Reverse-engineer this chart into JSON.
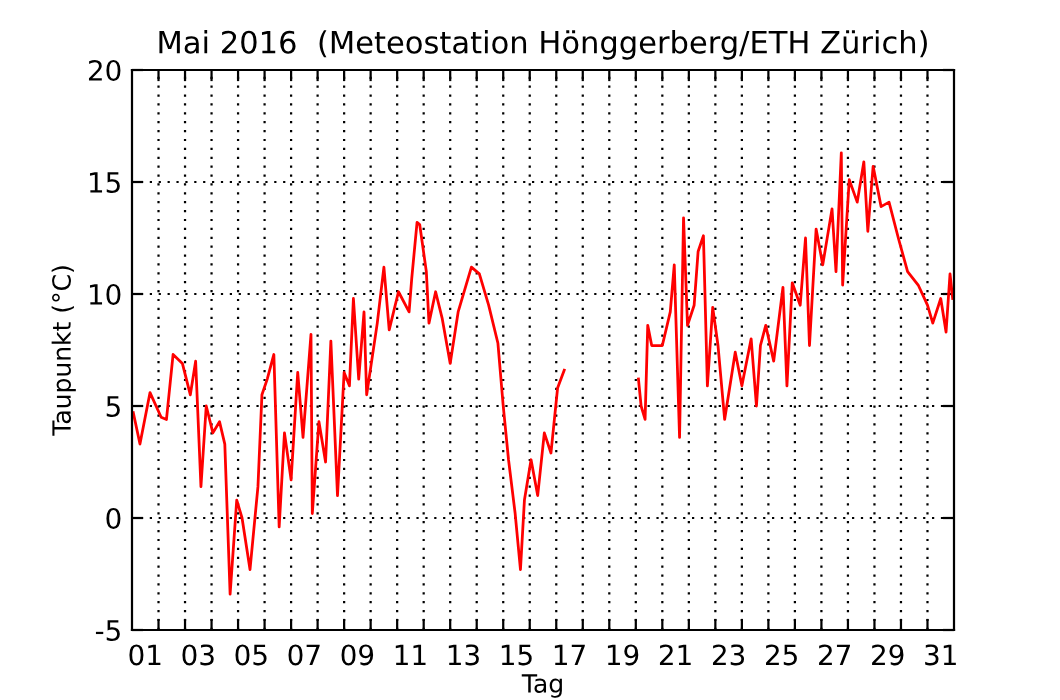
{
  "chart_data": {
    "type": "line",
    "title": "Mai 2016  (Meteostation Hönggerberg/ETH Zürich)",
    "xlabel": "Tag",
    "ylabel": "Taupunkt (°C)",
    "series": [
      {
        "color": "#ff0000",
        "x": [
          1.05,
          1.3,
          1.68,
          2.1,
          2.3,
          2.55,
          2.9,
          3.2,
          3.4,
          3.6,
          3.8,
          4.05,
          4.3,
          4.5,
          4.7,
          4.95,
          5.15,
          5.45,
          5.75,
          5.9,
          6.1,
          6.35,
          6.55,
          6.75,
          7.0,
          7.25,
          7.45,
          7.75,
          7.8,
          8.05,
          8.3,
          8.5,
          8.75,
          9.0,
          9.2,
          9.35,
          9.55,
          9.75,
          9.85,
          10.25,
          10.5,
          10.7,
          11.05,
          11.45,
          11.55,
          11.75,
          11.85,
          12.1,
          12.2,
          12.45,
          12.7,
          13.0,
          13.3,
          13.8,
          14.1,
          14.45,
          14.8,
          15.0,
          15.2,
          15.45,
          15.65,
          15.8,
          16.05,
          16.3,
          16.55,
          16.8,
          17.05,
          17.3,
          18.7,
          20.1,
          20.2,
          20.35,
          20.45,
          20.6,
          21.0,
          21.3,
          21.45,
          21.65,
          21.8,
          21.95,
          22.2,
          22.35,
          22.55,
          22.7,
          22.9,
          23.1,
          23.35,
          23.75,
          24.0,
          24.35,
          24.55,
          24.7,
          24.9,
          25.2,
          25.55,
          25.7,
          25.9,
          26.2,
          26.4,
          26.55,
          26.8,
          27.05,
          27.4,
          27.55,
          27.75,
          27.8,
          28.05,
          28.35,
          28.6,
          28.75,
          28.95,
          29.25,
          29.55,
          29.9,
          30.25,
          30.65,
          31.0,
          31.2,
          31.5,
          31.7,
          31.85,
          31.95
        ],
        "values": [
          4.7,
          3.3,
          5.6,
          4.5,
          4.4,
          7.3,
          6.9,
          5.5,
          7.0,
          1.4,
          5.0,
          3.8,
          4.3,
          3.3,
          -3.4,
          0.8,
          0.0,
          -2.3,
          1.4,
          5.5,
          6.2,
          7.3,
          -0.4,
          3.8,
          1.7,
          6.5,
          3.6,
          8.2,
          0.2,
          4.3,
          2.5,
          7.9,
          1.0,
          6.5,
          5.9,
          9.8,
          6.2,
          9.2,
          5.5,
          8.7,
          11.2,
          8.4,
          10.1,
          9.2,
          10.7,
          13.2,
          13.1,
          11.0,
          8.7,
          10.1,
          8.9,
          6.9,
          9.2,
          11.2,
          10.9,
          9.5,
          7.8,
          5.0,
          2.6,
          0.2,
          -2.3,
          0.8,
          2.6,
          1.0,
          3.8,
          2.9,
          5.8,
          6.6,
          null,
          6.2,
          5.0,
          4.4,
          8.6,
          7.7,
          7.7,
          9.2,
          11.3,
          3.6,
          13.4,
          8.6,
          9.5,
          11.9,
          12.6,
          5.9,
          9.4,
          7.7,
          4.4,
          7.4,
          5.9,
          8.0,
          5.0,
          7.7,
          8.6,
          7.0,
          10.3,
          5.9,
          10.5,
          9.5,
          12.5,
          7.7,
          12.9,
          11.3,
          13.8,
          11.0,
          16.3,
          10.4,
          15.1,
          14.1,
          15.9,
          12.8,
          15.7,
          13.9,
          14.1,
          12.5,
          11.0,
          10.4,
          9.5,
          8.7,
          9.8,
          8.3,
          10.9,
          9.8
        ]
      }
    ],
    "xlim": [
      1,
      32
    ],
    "ylim": [
      -5,
      20
    ],
    "yticks": [
      -5,
      0,
      5,
      10,
      15,
      20
    ],
    "xticks": [
      {
        "value": 1.5,
        "label": "01"
      },
      {
        "value": 3.5,
        "label": "03"
      },
      {
        "value": 5.5,
        "label": "05"
      },
      {
        "value": 7.5,
        "label": "07"
      },
      {
        "value": 9.5,
        "label": "09"
      },
      {
        "value": 11.5,
        "label": "11"
      },
      {
        "value": 13.5,
        "label": "13"
      },
      {
        "value": 15.5,
        "label": "15"
      },
      {
        "value": 17.5,
        "label": "17"
      },
      {
        "value": 19.5,
        "label": "19"
      },
      {
        "value": 21.5,
        "label": "21"
      },
      {
        "value": 23.5,
        "label": "23"
      },
      {
        "value": 25.5,
        "label": "25"
      },
      {
        "value": 27.5,
        "label": "27"
      },
      {
        "value": 29.5,
        "label": "29"
      },
      {
        "value": 31.5,
        "label": "31"
      },
      {
        "value": 2,
        "label": null
      },
      {
        "value": 3,
        "label": null
      },
      {
        "value": 4,
        "label": null
      },
      {
        "value": 5,
        "label": null
      },
      {
        "value": 6,
        "label": null
      },
      {
        "value": 7,
        "label": null
      },
      {
        "value": 8,
        "label": null
      },
      {
        "value": 9,
        "label": null
      },
      {
        "value": 10,
        "label": null
      },
      {
        "value": 11,
        "label": null
      },
      {
        "value": 12,
        "label": null
      },
      {
        "value": 13,
        "label": null
      },
      {
        "value": 14,
        "label": null
      },
      {
        "value": 15,
        "label": null
      },
      {
        "value": 16,
        "label": null
      },
      {
        "value": 17,
        "label": null
      },
      {
        "value": 18,
        "label": null
      },
      {
        "value": 19,
        "label": null
      },
      {
        "value": 20,
        "label": null
      },
      {
        "value": 21,
        "label": null
      },
      {
        "value": 22,
        "label": null
      },
      {
        "value": 23,
        "label": null
      },
      {
        "value": 24,
        "label": null
      },
      {
        "value": 25,
        "label": null
      },
      {
        "value": 26,
        "label": null
      },
      {
        "value": 27,
        "label": null
      },
      {
        "value": 28,
        "label": null
      },
      {
        "value": 29,
        "label": null
      },
      {
        "value": 30,
        "label": null
      },
      {
        "value": 31,
        "label": null
      }
    ],
    "grid": true,
    "line_style": "solid",
    "marker": "none"
  }
}
